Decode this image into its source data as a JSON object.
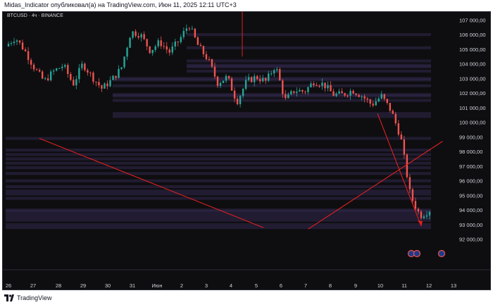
{
  "header": {
    "text": "Midas_Indicator опубликовал(а) на TradingView.com, Июн 11, 2025 12:11 UTC+3"
  },
  "symbol": {
    "label": "BTCUSD · 4ч · BINANCE"
  },
  "footer": {
    "brand": "TradingView"
  },
  "chart_data": {
    "type": "candlestick",
    "title": "BTCUSD · 4ч · BINANCE",
    "price_axis": {
      "ticks": [
        92000,
        93000,
        94000,
        95000,
        96000,
        97000,
        98000,
        99000,
        100000,
        101000,
        102000,
        103000,
        104000,
        105000,
        106000,
        107000
      ],
      "tick_labels": [
        "92 000,00",
        "93 000,00",
        "94 000,00",
        "95 000,00",
        "96 000,00",
        "97 000,00",
        "98 000,00",
        "99 000,00",
        "100 000,00",
        "101 000,00",
        "102 000,00",
        "103 000,00",
        "104 000,00",
        "105 000,00",
        "106 000,00",
        "107 000,00"
      ],
      "range": [
        91600,
        107500
      ]
    },
    "time_axis": {
      "labels": [
        "26",
        "27",
        "28",
        "29",
        "30",
        "31",
        "Июн",
        "2",
        "3",
        "4",
        "5",
        "6",
        "7",
        "8",
        "9",
        "10",
        "11",
        "12",
        "13"
      ],
      "range": [
        26,
        13
      ]
    },
    "grid": false,
    "colors": {
      "up": "#26a69a",
      "down": "#ef5350",
      "zone": "#3a2f5c",
      "line": "#e0201f"
    },
    "price_path": [
      [
        0,
        105200
      ],
      [
        1,
        105800
      ],
      [
        2,
        104900
      ],
      [
        3,
        103700
      ],
      [
        4,
        102800
      ],
      [
        5,
        103500
      ],
      [
        6,
        103900
      ],
      [
        7,
        102600
      ],
      [
        8,
        104000
      ],
      [
        9,
        103100
      ],
      [
        10,
        102300
      ],
      [
        11,
        102900
      ],
      [
        12,
        103700
      ],
      [
        13,
        106200
      ],
      [
        14,
        106000
      ],
      [
        15,
        104900
      ],
      [
        16,
        105500
      ],
      [
        17,
        104800
      ],
      [
        18,
        105600
      ],
      [
        19,
        106700
      ],
      [
        20,
        105200
      ],
      [
        21,
        104300
      ],
      [
        22,
        102700
      ],
      [
        23,
        103100
      ],
      [
        24,
        101400
      ],
      [
        25,
        102800
      ],
      [
        26,
        103100
      ],
      [
        27,
        102800
      ],
      [
        28,
        103900
      ],
      [
        29,
        101500
      ],
      [
        30,
        102200
      ],
      [
        31,
        102100
      ],
      [
        32,
        102800
      ],
      [
        33,
        102600
      ],
      [
        34,
        101900
      ],
      [
        35,
        101900
      ],
      [
        36,
        102200
      ],
      [
        37,
        101800
      ],
      [
        38,
        101200
      ],
      [
        39,
        101800
      ],
      [
        40,
        100800
      ],
      [
        41,
        99000
      ],
      [
        42,
        95000
      ],
      [
        43,
        93600
      ],
      [
        44,
        94000
      ]
    ],
    "annotations": {
      "zone_bands": [
        [
          105900,
          106100
        ],
        [
          105000,
          105200
        ],
        [
          104100,
          104300
        ],
        [
          103800,
          104000
        ],
        [
          103700,
          103900
        ],
        [
          102800,
          103000
        ],
        [
          101800,
          102000
        ],
        [
          101700,
          101900
        ],
        [
          103400,
          103600
        ],
        [
          102900,
          103100
        ],
        [
          102400,
          102600
        ],
        [
          101400,
          101600
        ],
        [
          100500,
          100700
        ],
        [
          100300,
          100500
        ],
        [
          98800,
          99000
        ],
        [
          98000,
          98200
        ],
        [
          97700,
          97900
        ],
        [
          97400,
          97600
        ],
        [
          97100,
          97300
        ],
        [
          96800,
          97000
        ],
        [
          96400,
          96600
        ],
        [
          95900,
          96100
        ],
        [
          95500,
          95700
        ],
        [
          95000,
          95400
        ],
        [
          94700,
          94900
        ],
        [
          93900,
          94100
        ],
        [
          93200,
          94000
        ],
        [
          92700,
          93100
        ]
      ],
      "cross_lines": [
        [
          [
            0.0,
            98900
          ],
          [
            0.5,
            92800
          ]
        ],
        [
          [
            0.6,
            92700
          ],
          [
            0.9,
            98700
          ]
        ]
      ],
      "arrows": [
        [
          [
            0.78,
            100600
          ],
          [
            0.92,
            92900
          ]
        ]
      ]
    }
  }
}
